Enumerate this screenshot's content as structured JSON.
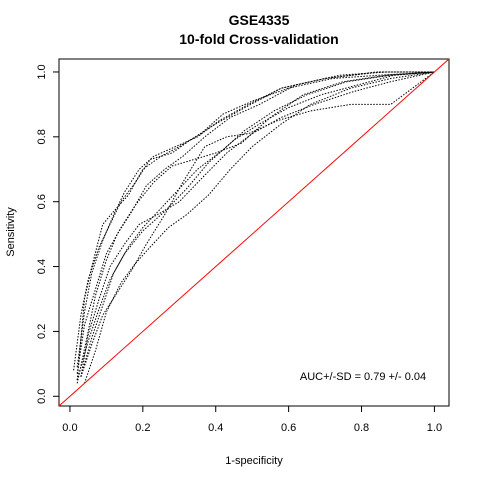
{
  "chart_data": {
    "type": "line",
    "title": "GSE4335",
    "subtitle": "10-fold Cross-validation",
    "xlabel": "1-specificity",
    "ylabel": "Sensitivity",
    "xlim": [
      -0.03,
      1.04
    ],
    "ylim": [
      -0.03,
      1.04
    ],
    "x_ticks": [
      0.0,
      0.2,
      0.4,
      0.6,
      0.8,
      1.0
    ],
    "y_ticks": [
      0.0,
      0.2,
      0.4,
      0.6,
      0.8,
      1.0
    ],
    "x_tick_labels": [
      "0.0",
      "0.2",
      "0.4",
      "0.6",
      "0.8",
      "1.0"
    ],
    "y_tick_labels": [
      "0.0",
      "0.2",
      "0.4",
      "0.6",
      "0.8",
      "1.0"
    ],
    "grid": false,
    "annotation": "AUC+/-SD = 0.79 +/- 0.04",
    "diagonal": {
      "x": [
        0,
        1
      ],
      "y": [
        0,
        1
      ],
      "color": "#ff0000"
    },
    "series_color": "#000000",
    "series_style": "dotted",
    "series": [
      {
        "x": [
          0.02,
          0.04,
          0.06,
          0.09,
          0.12,
          0.16,
          0.2,
          0.25,
          0.3,
          0.36,
          0.42,
          0.5,
          0.6,
          0.72,
          0.85,
          1.0
        ],
        "y": [
          0.05,
          0.3,
          0.4,
          0.53,
          0.57,
          0.62,
          0.7,
          0.74,
          0.77,
          0.81,
          0.87,
          0.91,
          0.95,
          0.98,
          0.99,
          1.0
        ]
      },
      {
        "x": [
          0.01,
          0.03,
          0.05,
          0.08,
          0.11,
          0.14,
          0.18,
          0.22,
          0.28,
          0.33,
          0.4,
          0.48,
          0.58,
          0.7,
          0.85,
          1.0
        ],
        "y": [
          0.08,
          0.25,
          0.36,
          0.46,
          0.53,
          0.6,
          0.66,
          0.73,
          0.75,
          0.79,
          0.84,
          0.89,
          0.95,
          0.98,
          1.0,
          1.0
        ]
      },
      {
        "x": [
          0.02,
          0.05,
          0.07,
          0.1,
          0.13,
          0.17,
          0.21,
          0.26,
          0.31,
          0.37,
          0.44,
          0.52,
          0.62,
          0.74,
          0.87,
          1.0
        ],
        "y": [
          0.04,
          0.2,
          0.31,
          0.42,
          0.5,
          0.57,
          0.65,
          0.7,
          0.74,
          0.8,
          0.86,
          0.9,
          0.96,
          0.99,
          1.0,
          1.0
        ]
      },
      {
        "x": [
          0.03,
          0.06,
          0.09,
          0.12,
          0.16,
          0.2,
          0.25,
          0.3,
          0.35,
          0.42,
          0.48,
          0.56,
          0.65,
          0.76,
          0.88,
          1.0
        ],
        "y": [
          0.06,
          0.18,
          0.28,
          0.38,
          0.46,
          0.52,
          0.58,
          0.64,
          0.7,
          0.76,
          0.82,
          0.88,
          0.93,
          0.97,
          0.99,
          1.0
        ]
      },
      {
        "x": [
          0.02,
          0.04,
          0.07,
          0.1,
          0.14,
          0.18,
          0.23,
          0.28,
          0.34,
          0.4,
          0.47,
          0.55,
          0.64,
          0.75,
          0.87,
          1.0
        ],
        "y": [
          0.07,
          0.22,
          0.33,
          0.44,
          0.52,
          0.59,
          0.66,
          0.71,
          0.73,
          0.75,
          0.78,
          0.86,
          0.93,
          0.97,
          0.99,
          1.0
        ]
      },
      {
        "x": [
          0.04,
          0.07,
          0.1,
          0.14,
          0.18,
          0.22,
          0.27,
          0.32,
          0.38,
          0.44,
          0.5,
          0.58,
          0.66,
          0.77,
          0.88,
          1.0
        ],
        "y": [
          0.04,
          0.14,
          0.26,
          0.35,
          0.41,
          0.46,
          0.52,
          0.56,
          0.62,
          0.7,
          0.77,
          0.84,
          0.9,
          0.95,
          0.98,
          1.0
        ]
      },
      {
        "x": [
          0.03,
          0.05,
          0.08,
          0.11,
          0.15,
          0.19,
          0.24,
          0.3,
          0.36,
          0.43,
          0.5,
          0.58,
          0.67,
          0.78,
          0.88,
          1.0
        ],
        "y": [
          0.06,
          0.19,
          0.3,
          0.4,
          0.47,
          0.53,
          0.56,
          0.6,
          0.67,
          0.75,
          0.81,
          0.86,
          0.9,
          0.94,
          0.97,
          1.0
        ]
      },
      {
        "x": [
          0.02,
          0.04,
          0.06,
          0.09,
          0.12,
          0.15,
          0.19,
          0.23,
          0.29,
          0.35,
          0.41,
          0.49,
          0.58,
          0.7,
          0.84,
          1.0
        ],
        "y": [
          0.09,
          0.26,
          0.38,
          0.48,
          0.56,
          0.63,
          0.7,
          0.74,
          0.77,
          0.8,
          0.85,
          0.9,
          0.95,
          0.98,
          1.0,
          1.0
        ]
      },
      {
        "x": [
          0.02,
          0.05,
          0.08,
          0.11,
          0.15,
          0.2,
          0.26,
          0.32,
          0.38,
          0.45,
          0.52,
          0.6,
          0.69,
          0.79,
          0.89,
          1.0
        ],
        "y": [
          0.05,
          0.17,
          0.27,
          0.36,
          0.44,
          0.51,
          0.57,
          0.64,
          0.72,
          0.79,
          0.84,
          0.89,
          0.93,
          0.96,
          0.99,
          1.0
        ]
      },
      {
        "x": [
          0.03,
          0.06,
          0.09,
          0.13,
          0.17,
          0.21,
          0.26,
          0.31,
          0.37,
          0.43,
          0.49,
          0.57,
          0.66,
          0.77,
          0.88,
          1.0
        ],
        "y": [
          0.06,
          0.16,
          0.25,
          0.32,
          0.39,
          0.47,
          0.56,
          0.66,
          0.77,
          0.8,
          0.81,
          0.85,
          0.88,
          0.9,
          0.9,
          1.0
        ]
      }
    ]
  }
}
